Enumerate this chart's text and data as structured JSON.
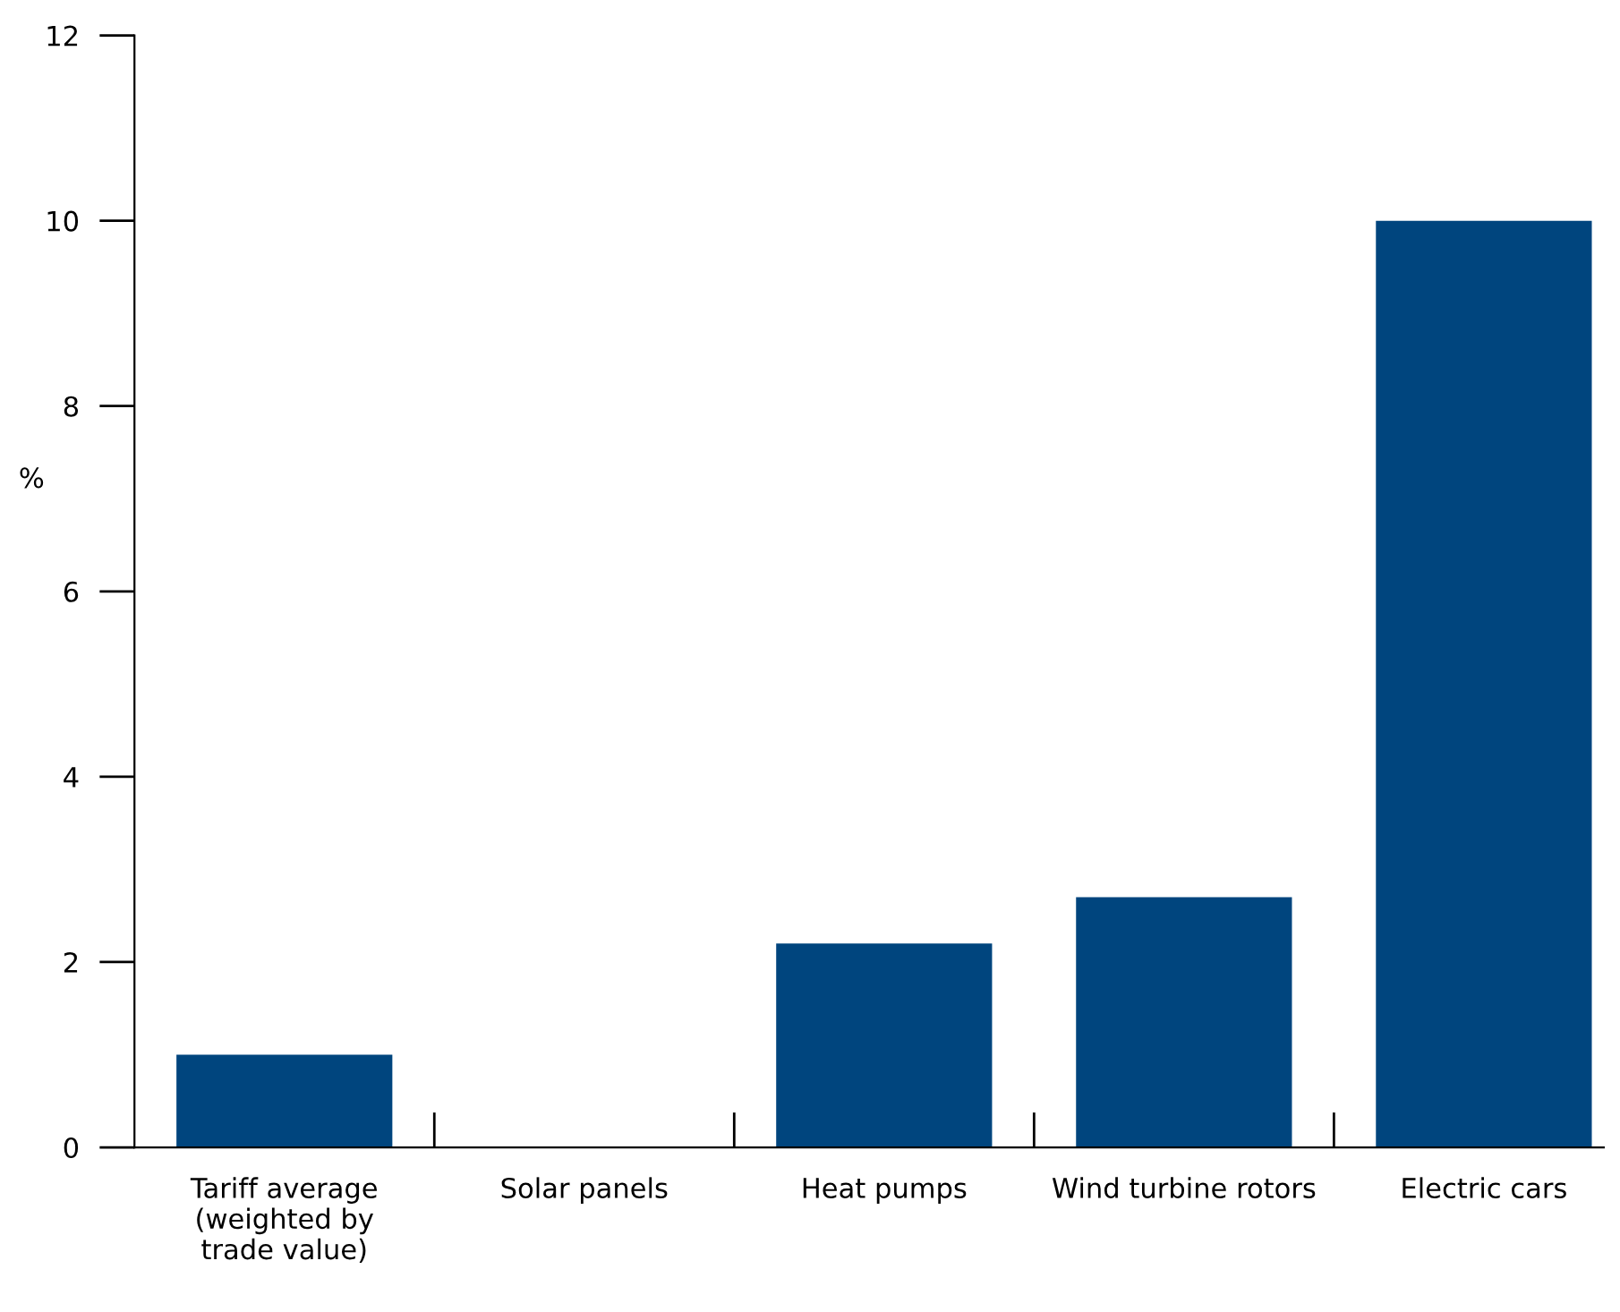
{
  "chart_data": {
    "type": "bar",
    "categories": [
      "Tariff average\n(weighted by\ntrade value)",
      "Solar panels",
      "Heat pumps",
      "Wind turbine rotors",
      "Electric cars"
    ],
    "values": [
      1.0,
      0,
      2.2,
      2.7,
      10
    ],
    "color": "#00457e",
    "ylabel": "%",
    "ylim": [
      0,
      12
    ],
    "yticks": [
      0,
      2,
      4,
      6,
      8,
      10,
      12
    ],
    "grid": false,
    "legend": false
  }
}
